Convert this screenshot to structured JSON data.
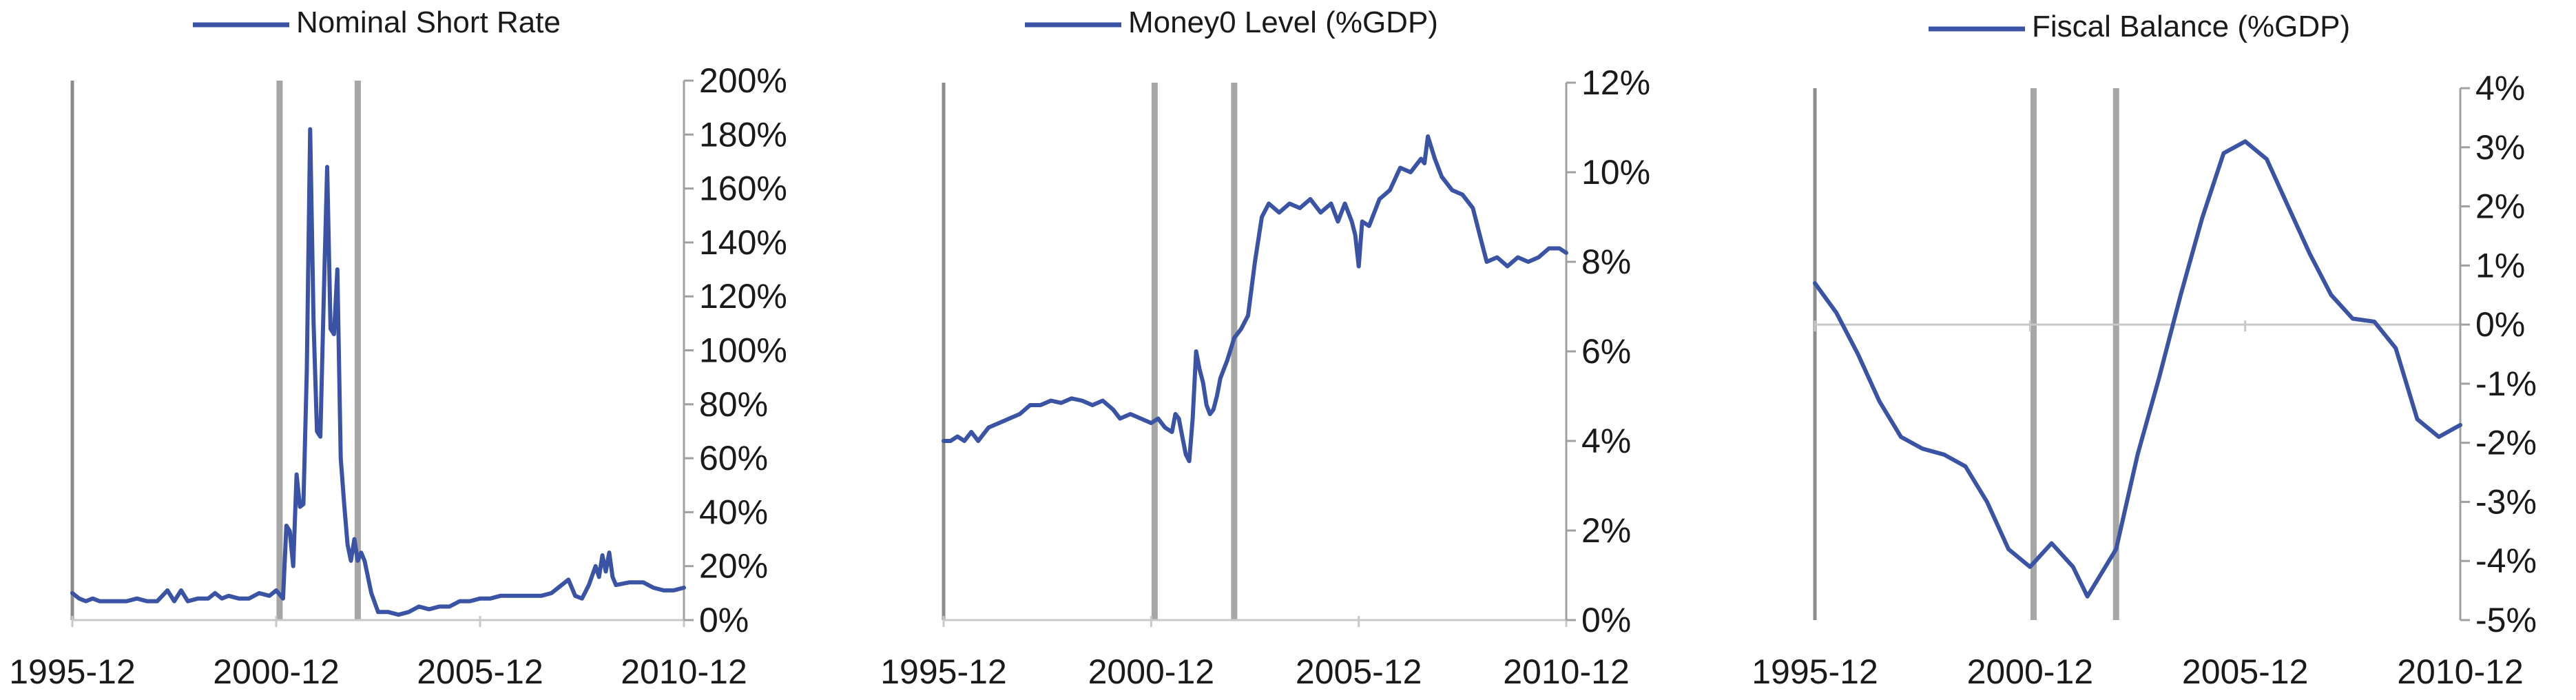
{
  "style": {
    "line_color": "#3a53a4",
    "band_color": "#a6a6a6",
    "axis_color": "#8c8c8c"
  },
  "recession_bands": [
    "2001-01",
    "2002-12"
  ],
  "chart_data": [
    {
      "type": "line",
      "legend": "Nominal Short Rate",
      "y_format": "percent",
      "ylim": [
        0,
        200
      ],
      "y_ticks": [
        0,
        20,
        40,
        60,
        80,
        100,
        120,
        140,
        160,
        180,
        200
      ],
      "x_ticks": [
        "1995-12",
        "2000-12",
        "2005-12",
        "2010-12"
      ],
      "xlim": [
        "1995-12",
        "2010-12"
      ],
      "zero_line": false,
      "series": [
        {
          "name": "Nominal Short Rate",
          "points": [
            [
              "1995-12",
              10
            ],
            [
              "1996-02",
              8
            ],
            [
              "1996-04",
              7
            ],
            [
              "1996-06",
              8
            ],
            [
              "1996-08",
              7
            ],
            [
              "1996-10",
              7
            ],
            [
              "1997-01",
              7
            ],
            [
              "1997-04",
              7
            ],
            [
              "1997-07",
              8
            ],
            [
              "1997-10",
              7
            ],
            [
              "1998-01",
              7
            ],
            [
              "1998-04",
              11
            ],
            [
              "1998-06",
              7
            ],
            [
              "1998-08",
              11
            ],
            [
              "1998-10",
              7
            ],
            [
              "1999-01",
              8
            ],
            [
              "1999-04",
              8
            ],
            [
              "1999-06",
              10
            ],
            [
              "1999-08",
              8
            ],
            [
              "1999-10",
              9
            ],
            [
              "2000-01",
              8
            ],
            [
              "2000-04",
              8
            ],
            [
              "2000-07",
              10
            ],
            [
              "2000-10",
              9
            ],
            [
              "2000-12",
              11
            ],
            [
              "2001-02",
              8
            ],
            [
              "2001-03",
              35
            ],
            [
              "2001-04",
              33
            ],
            [
              "2001-05",
              20
            ],
            [
              "2001-06",
              54
            ],
            [
              "2001-07",
              42
            ],
            [
              "2001-08",
              43
            ],
            [
              "2001-09",
              92
            ],
            [
              "2001-10",
              182
            ],
            [
              "2001-11",
              110
            ],
            [
              "2001-12",
              70
            ],
            [
              "2002-01",
              68
            ],
            [
              "2002-02",
              120
            ],
            [
              "2002-03",
              168
            ],
            [
              "2002-04",
              108
            ],
            [
              "2002-05",
              106
            ],
            [
              "2002-06",
              130
            ],
            [
              "2002-07",
              60
            ],
            [
              "2002-08",
              43
            ],
            [
              "2002-09",
              28
            ],
            [
              "2002-10",
              22
            ],
            [
              "2002-11",
              30
            ],
            [
              "2002-12",
              22
            ],
            [
              "2003-01",
              25
            ],
            [
              "2003-02",
              22
            ],
            [
              "2003-04",
              10
            ],
            [
              "2003-06",
              3
            ],
            [
              "2003-09",
              3
            ],
            [
              "2003-12",
              2
            ],
            [
              "2004-03",
              3
            ],
            [
              "2004-06",
              5
            ],
            [
              "2004-09",
              4
            ],
            [
              "2004-12",
              5
            ],
            [
              "2005-03",
              5
            ],
            [
              "2005-06",
              7
            ],
            [
              "2005-09",
              7
            ],
            [
              "2005-12",
              8
            ],
            [
              "2006-03",
              8
            ],
            [
              "2006-06",
              9
            ],
            [
              "2006-09",
              9
            ],
            [
              "2006-12",
              9
            ],
            [
              "2007-03",
              9
            ],
            [
              "2007-06",
              9
            ],
            [
              "2007-09",
              10
            ],
            [
              "2007-12",
              13
            ],
            [
              "2008-02",
              15
            ],
            [
              "2008-04",
              9
            ],
            [
              "2008-06",
              8
            ],
            [
              "2008-08",
              13
            ],
            [
              "2008-10",
              20
            ],
            [
              "2008-11",
              16
            ],
            [
              "2008-12",
              24
            ],
            [
              "2009-01",
              18
            ],
            [
              "2009-02",
              25
            ],
            [
              "2009-03",
              16
            ],
            [
              "2009-04",
              13
            ],
            [
              "2009-08",
              14
            ],
            [
              "2009-12",
              14
            ],
            [
              "2010-03",
              12
            ],
            [
              "2010-06",
              11
            ],
            [
              "2010-09",
              11
            ],
            [
              "2010-12",
              12
            ]
          ]
        }
      ]
    },
    {
      "type": "line",
      "legend": "Money0 Level (%GDP)",
      "y_format": "percent",
      "ylim": [
        0,
        12
      ],
      "y_ticks": [
        0,
        2,
        4,
        6,
        8,
        10,
        12
      ],
      "x_ticks": [
        "1995-12",
        "2000-12",
        "2005-12",
        "2010-12"
      ],
      "xlim": [
        "1995-12",
        "2010-12"
      ],
      "zero_line": false,
      "series": [
        {
          "name": "Money0 Level (%GDP)",
          "points": [
            [
              "1995-12",
              4.0
            ],
            [
              "1996-02",
              4.0
            ],
            [
              "1996-04",
              4.1
            ],
            [
              "1996-06",
              4.0
            ],
            [
              "1996-08",
              4.2
            ],
            [
              "1996-10",
              4.0
            ],
            [
              "1997-01",
              4.3
            ],
            [
              "1997-04",
              4.4
            ],
            [
              "1997-07",
              4.5
            ],
            [
              "1997-10",
              4.6
            ],
            [
              "1998-01",
              4.8
            ],
            [
              "1998-04",
              4.8
            ],
            [
              "1998-07",
              4.9
            ],
            [
              "1998-10",
              4.85
            ],
            [
              "1999-01",
              4.95
            ],
            [
              "1999-04",
              4.9
            ],
            [
              "1999-07",
              4.8
            ],
            [
              "1999-10",
              4.9
            ],
            [
              "2000-01",
              4.7
            ],
            [
              "2000-03",
              4.5
            ],
            [
              "2000-06",
              4.6
            ],
            [
              "2000-09",
              4.5
            ],
            [
              "2000-12",
              4.4
            ],
            [
              "2001-02",
              4.5
            ],
            [
              "2001-04",
              4.3
            ],
            [
              "2001-06",
              4.2
            ],
            [
              "2001-07",
              4.6
            ],
            [
              "2001-08",
              4.5
            ],
            [
              "2001-09",
              4.1
            ],
            [
              "2001-10",
              3.7
            ],
            [
              "2001-11",
              3.55
            ],
            [
              "2001-12",
              4.5
            ],
            [
              "2002-01",
              6.0
            ],
            [
              "2002-02",
              5.6
            ],
            [
              "2002-03",
              5.3
            ],
            [
              "2002-04",
              4.8
            ],
            [
              "2002-05",
              4.6
            ],
            [
              "2002-06",
              4.7
            ],
            [
              "2002-07",
              5.0
            ],
            [
              "2002-08",
              5.4
            ],
            [
              "2002-10",
              5.8
            ],
            [
              "2002-12",
              6.3
            ],
            [
              "2003-02",
              6.5
            ],
            [
              "2003-04",
              6.8
            ],
            [
              "2003-06",
              8.0
            ],
            [
              "2003-08",
              9.0
            ],
            [
              "2003-10",
              9.3
            ],
            [
              "2004-01",
              9.1
            ],
            [
              "2004-04",
              9.3
            ],
            [
              "2004-07",
              9.2
            ],
            [
              "2004-10",
              9.4
            ],
            [
              "2005-01",
              9.1
            ],
            [
              "2005-04",
              9.3
            ],
            [
              "2005-06",
              8.9
            ],
            [
              "2005-08",
              9.3
            ],
            [
              "2005-10",
              8.9
            ],
            [
              "2005-11",
              8.6
            ],
            [
              "2005-12",
              7.9
            ],
            [
              "2006-01",
              8.9
            ],
            [
              "2006-03",
              8.8
            ],
            [
              "2006-06",
              9.4
            ],
            [
              "2006-09",
              9.6
            ],
            [
              "2006-12",
              10.1
            ],
            [
              "2007-03",
              10.0
            ],
            [
              "2007-06",
              10.3
            ],
            [
              "2007-07",
              10.2
            ],
            [
              "2007-08",
              10.8
            ],
            [
              "2007-10",
              10.3
            ],
            [
              "2007-12",
              9.9
            ],
            [
              "2008-03",
              9.6
            ],
            [
              "2008-06",
              9.5
            ],
            [
              "2008-09",
              9.2
            ],
            [
              "2008-11",
              8.6
            ],
            [
              "2009-01",
              8.0
            ],
            [
              "2009-04",
              8.1
            ],
            [
              "2009-07",
              7.9
            ],
            [
              "2009-10",
              8.1
            ],
            [
              "2010-01",
              8.0
            ],
            [
              "2010-04",
              8.1
            ],
            [
              "2010-07",
              8.3
            ],
            [
              "2010-10",
              8.3
            ],
            [
              "2010-12",
              8.2
            ]
          ]
        }
      ]
    },
    {
      "type": "line",
      "legend": "Fiscal Balance (%GDP)",
      "y_format": "percent",
      "ylim": [
        -5,
        4
      ],
      "y_ticks": [
        -5,
        -4,
        -3,
        -2,
        -1,
        0,
        1,
        2,
        3,
        4
      ],
      "x_ticks": [
        "1995-12",
        "2000-12",
        "2005-12",
        "2010-12"
      ],
      "xlim": [
        "1995-12",
        "2010-12"
      ],
      "zero_line": true,
      "series": [
        {
          "name": "Fiscal Balance (%GDP)",
          "points": [
            [
              "1995-12",
              0.7
            ],
            [
              "1996-06",
              0.2
            ],
            [
              "1996-12",
              -0.5
            ],
            [
              "1997-06",
              -1.3
            ],
            [
              "1997-12",
              -1.9
            ],
            [
              "1998-06",
              -2.1
            ],
            [
              "1998-12",
              -2.2
            ],
            [
              "1999-06",
              -2.4
            ],
            [
              "1999-12",
              -3.0
            ],
            [
              "2000-06",
              -3.8
            ],
            [
              "2000-12",
              -4.1
            ],
            [
              "2001-06",
              -3.7
            ],
            [
              "2001-12",
              -4.1
            ],
            [
              "2002-04",
              -4.6
            ],
            [
              "2002-12",
              -3.8
            ],
            [
              "2003-06",
              -2.2
            ],
            [
              "2003-12",
              -0.9
            ],
            [
              "2004-06",
              0.5
            ],
            [
              "2004-12",
              1.8
            ],
            [
              "2005-06",
              2.9
            ],
            [
              "2005-12",
              3.1
            ],
            [
              "2006-06",
              2.8
            ],
            [
              "2006-12",
              2.0
            ],
            [
              "2007-06",
              1.2
            ],
            [
              "2007-12",
              0.5
            ],
            [
              "2008-06",
              0.1
            ],
            [
              "2008-12",
              0.05
            ],
            [
              "2009-06",
              -0.4
            ],
            [
              "2009-12",
              -1.6
            ],
            [
              "2010-06",
              -1.9
            ],
            [
              "2010-12",
              -1.7
            ]
          ]
        }
      ]
    }
  ]
}
